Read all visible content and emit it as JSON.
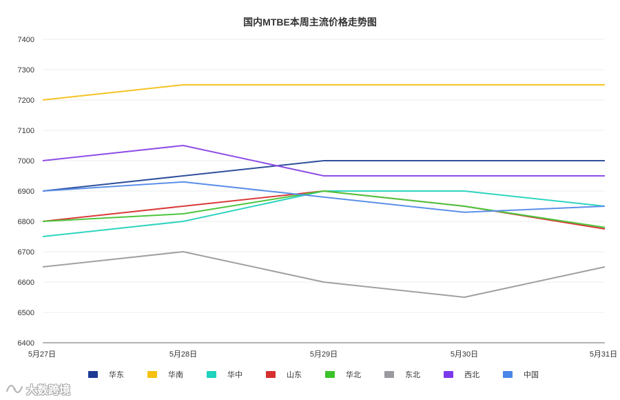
{
  "chart_data": {
    "type": "line",
    "title": "国内MTBE本周主流价格走势图",
    "categories": [
      "5月27日",
      "5月28日",
      "5月29日",
      "5月30日",
      "5月31日"
    ],
    "ylim": [
      6400,
      7400
    ],
    "yticks": [
      6400,
      6500,
      6600,
      6700,
      6800,
      6900,
      7000,
      7100,
      7200,
      7300,
      7400
    ],
    "grid": true,
    "legend_position": "bottom",
    "series": [
      {
        "name": "华东",
        "color": "#2e4e9c",
        "values": [
          6900,
          6950,
          7000,
          7000,
          7000
        ]
      },
      {
        "name": "华南",
        "color": "#f5c324",
        "values": [
          7200,
          7250,
          7250,
          7250,
          7250
        ]
      },
      {
        "name": "华中",
        "color": "#2ed4bf",
        "values": [
          6750,
          6800,
          6900,
          6900,
          6850
        ]
      },
      {
        "name": "山东",
        "color": "#d93a3a",
        "values": [
          6800,
          6850,
          6900,
          6850,
          6775
        ]
      },
      {
        "name": "华北",
        "color": "#4cc63c",
        "values": [
          6800,
          6825,
          6900,
          6850,
          6780
        ]
      },
      {
        "name": "东北",
        "color": "#a0a0a0",
        "values": [
          6650,
          6700,
          6600,
          6550,
          6650
        ]
      },
      {
        "name": "西北",
        "color": "#8e4de6",
        "values": [
          7000,
          7050,
          6950,
          6950,
          6950
        ]
      },
      {
        "name": "中国",
        "color": "#5a8fe8",
        "values": [
          6900,
          6930,
          6880,
          6830,
          6850
        ]
      }
    ]
  },
  "legend_swatches": {
    "华东": "#1f3a93",
    "华南": "#f5c211",
    "华中": "#1fd3be",
    "山东": "#d62f2f",
    "华北": "#3cc32a",
    "东北": "#9a9aa0",
    "西北": "#7c3aed",
    "中国": "#4a86e8"
  },
  "watermark": {
    "text": "大数跨境",
    "logo_icon": "wave-logo-icon"
  }
}
